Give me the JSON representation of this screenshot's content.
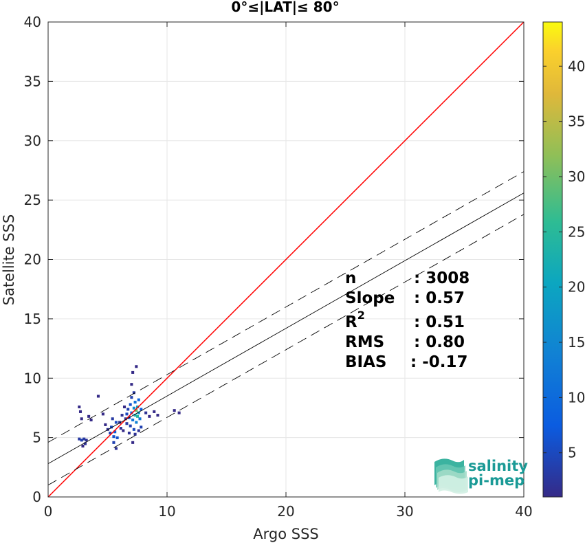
{
  "chart_data": {
    "type": "scatter",
    "title": "0°≤|LAT|≤ 80°",
    "xlabel": "Argo SSS",
    "ylabel": "Satellite SSS",
    "xlim": [
      0,
      40
    ],
    "ylim": [
      0,
      40
    ],
    "xticks": [
      "0",
      "10",
      "20",
      "30",
      "40"
    ],
    "yticks": [
      "0",
      "5",
      "10",
      "15",
      "20",
      "25",
      "30",
      "35",
      "40"
    ],
    "grid": true,
    "stats": [
      {
        "name": "n",
        "value": ": 3008"
      },
      {
        "name": "Slope",
        "value": ": 0.57"
      },
      {
        "name": "R",
        "sup": "2",
        "value": ": 0.51"
      },
      {
        "name": "RMS",
        "value": ": 0.80"
      },
      {
        "name": "BIAS",
        "value": ": -0.17"
      }
    ],
    "lines": {
      "identity": {
        "slope": 1.0,
        "intercept": 0.0,
        "color": "#ff0000"
      },
      "fit": {
        "slope": 0.57,
        "intercept": 2.8,
        "color": "#000000"
      },
      "fit_upper": {
        "slope": 0.57,
        "intercept": 4.6,
        "color": "#000000",
        "dashed": true
      },
      "fit_lower": {
        "slope": 0.57,
        "intercept": 1.0,
        "color": "#000000",
        "dashed": true
      }
    },
    "colorbar": {
      "ticks": [
        "5",
        "10",
        "15",
        "20",
        "25",
        "30",
        "35",
        "40"
      ],
      "tick_values": [
        5,
        10,
        15,
        20,
        25,
        30,
        35,
        40
      ],
      "min": 1,
      "max": 44
    },
    "density_points": [
      {
        "x": 2.6,
        "y": 7.6,
        "c": 1
      },
      {
        "x": 2.7,
        "y": 7.2,
        "c": 1
      },
      {
        "x": 2.6,
        "y": 4.9,
        "c": 3
      },
      {
        "x": 2.8,
        "y": 4.8,
        "c": 4
      },
      {
        "x": 3.0,
        "y": 4.9,
        "c": 3
      },
      {
        "x": 3.1,
        "y": 4.5,
        "c": 2
      },
      {
        "x": 3.2,
        "y": 4.8,
        "c": 2
      },
      {
        "x": 2.9,
        "y": 4.3,
        "c": 1
      },
      {
        "x": 2.8,
        "y": 6.6,
        "c": 1
      },
      {
        "x": 3.4,
        "y": 6.8,
        "c": 1
      },
      {
        "x": 3.6,
        "y": 6.5,
        "c": 1
      },
      {
        "x": 4.2,
        "y": 8.5,
        "c": 1
      },
      {
        "x": 4.6,
        "y": 7.0,
        "c": 1
      },
      {
        "x": 4.8,
        "y": 6.1,
        "c": 1
      },
      {
        "x": 5.0,
        "y": 5.7,
        "c": 2
      },
      {
        "x": 5.2,
        "y": 5.4,
        "c": 4
      },
      {
        "x": 5.3,
        "y": 5.9,
        "c": 5
      },
      {
        "x": 5.5,
        "y": 5.1,
        "c": 6
      },
      {
        "x": 5.5,
        "y": 4.6,
        "c": 4
      },
      {
        "x": 5.6,
        "y": 5.5,
        "c": 8
      },
      {
        "x": 5.7,
        "y": 6.3,
        "c": 5
      },
      {
        "x": 5.7,
        "y": 4.1,
        "c": 2
      },
      {
        "x": 5.8,
        "y": 5.0,
        "c": 6
      },
      {
        "x": 5.4,
        "y": 6.6,
        "c": 3
      },
      {
        "x": 6.0,
        "y": 6.3,
        "c": 2
      },
      {
        "x": 6.1,
        "y": 5.8,
        "c": 2
      },
      {
        "x": 6.3,
        "y": 5.6,
        "c": 1
      },
      {
        "x": 6.5,
        "y": 6.6,
        "c": 3
      },
      {
        "x": 6.6,
        "y": 7.0,
        "c": 5
      },
      {
        "x": 6.6,
        "y": 6.2,
        "c": 3
      },
      {
        "x": 6.7,
        "y": 7.4,
        "c": 4
      },
      {
        "x": 6.8,
        "y": 6.7,
        "c": 7
      },
      {
        "x": 6.9,
        "y": 7.8,
        "c": 6
      },
      {
        "x": 6.9,
        "y": 6.0,
        "c": 4
      },
      {
        "x": 7.0,
        "y": 7.1,
        "c": 10
      },
      {
        "x": 7.0,
        "y": 8.4,
        "c": 4
      },
      {
        "x": 7.1,
        "y": 6.5,
        "c": 12
      },
      {
        "x": 7.2,
        "y": 7.5,
        "c": 16
      },
      {
        "x": 7.2,
        "y": 5.7,
        "c": 5
      },
      {
        "x": 7.3,
        "y": 6.9,
        "c": 22
      },
      {
        "x": 7.3,
        "y": 8.0,
        "c": 11
      },
      {
        "x": 7.4,
        "y": 7.3,
        "c": 30
      },
      {
        "x": 7.4,
        "y": 6.3,
        "c": 14
      },
      {
        "x": 7.5,
        "y": 7.6,
        "c": 20
      },
      {
        "x": 7.5,
        "y": 6.8,
        "c": 25
      },
      {
        "x": 7.6,
        "y": 7.1,
        "c": 18
      },
      {
        "x": 7.6,
        "y": 8.2,
        "c": 9
      },
      {
        "x": 7.7,
        "y": 6.6,
        "c": 12
      },
      {
        "x": 7.8,
        "y": 7.4,
        "c": 8
      },
      {
        "x": 7.8,
        "y": 5.9,
        "c": 4
      },
      {
        "x": 7.2,
        "y": 8.8,
        "c": 3
      },
      {
        "x": 7.0,
        "y": 9.5,
        "c": 1
      },
      {
        "x": 7.4,
        "y": 11.0,
        "c": 1
      },
      {
        "x": 7.1,
        "y": 10.5,
        "c": 1
      },
      {
        "x": 6.8,
        "y": 5.4,
        "c": 2
      },
      {
        "x": 7.3,
        "y": 5.3,
        "c": 2
      },
      {
        "x": 7.6,
        "y": 5.6,
        "c": 2
      },
      {
        "x": 7.1,
        "y": 4.6,
        "c": 1
      },
      {
        "x": 8.2,
        "y": 7.1,
        "c": 2
      },
      {
        "x": 8.5,
        "y": 6.8,
        "c": 1
      },
      {
        "x": 8.9,
        "y": 7.2,
        "c": 1
      },
      {
        "x": 9.2,
        "y": 6.9,
        "c": 1
      },
      {
        "x": 10.6,
        "y": 7.3,
        "c": 1
      },
      {
        "x": 11.0,
        "y": 7.1,
        "c": 1
      },
      {
        "x": 6.2,
        "y": 6.9,
        "c": 2
      },
      {
        "x": 6.4,
        "y": 7.6,
        "c": 1
      }
    ]
  },
  "logo": {
    "line1": "salinity",
    "line2": "pi-mep",
    "color": "#1a9a96"
  }
}
